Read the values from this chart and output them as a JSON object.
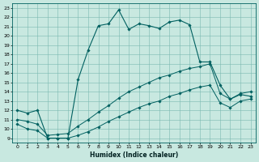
{
  "xlabel": "Humidex (Indice chaleur)",
  "bg_color": "#c8e8e0",
  "grid_color": "#7ab8b0",
  "line_color": "#006060",
  "xlim": [
    -0.5,
    23.5
  ],
  "ylim": [
    8.5,
    23.5
  ],
  "yticks": [
    9,
    10,
    11,
    12,
    13,
    14,
    15,
    16,
    17,
    18,
    19,
    20,
    21,
    22,
    23
  ],
  "xticks": [
    0,
    1,
    2,
    3,
    4,
    5,
    6,
    7,
    8,
    9,
    10,
    11,
    12,
    13,
    14,
    15,
    16,
    17,
    18,
    19,
    20,
    21,
    22,
    23
  ],
  "main_x": [
    0,
    1,
    2,
    3,
    4,
    5,
    6,
    7,
    8,
    9,
    10,
    11,
    12,
    13,
    14,
    15,
    16,
    17,
    18,
    19,
    20,
    21,
    22,
    23
  ],
  "main_y": [
    12.0,
    11.7,
    12.0,
    9.0,
    9.0,
    9.0,
    15.3,
    18.5,
    21.1,
    21.3,
    22.8,
    20.7,
    21.3,
    21.1,
    20.8,
    21.5,
    21.7,
    21.2,
    17.2,
    17.2,
    14.7,
    13.2,
    13.7,
    13.5
  ],
  "mid_x": [
    0,
    1,
    2,
    3,
    4,
    5,
    6,
    7,
    8,
    9,
    10,
    11,
    12,
    13,
    14,
    15,
    16,
    17,
    18,
    19,
    20,
    21,
    22,
    23
  ],
  "mid_y": [
    11.0,
    10.8,
    10.5,
    9.3,
    9.4,
    9.5,
    10.3,
    11.0,
    11.8,
    12.5,
    13.3,
    14.0,
    14.5,
    15.0,
    15.5,
    15.8,
    16.2,
    16.5,
    16.7,
    17.0,
    13.8,
    13.2,
    13.8,
    14.0
  ],
  "low_x": [
    0,
    1,
    2,
    3,
    4,
    5,
    6,
    7,
    8,
    9,
    10,
    11,
    12,
    13,
    14,
    15,
    16,
    17,
    18,
    19,
    20,
    21,
    22,
    23
  ],
  "low_y": [
    10.5,
    10.0,
    9.8,
    9.0,
    9.0,
    9.0,
    9.3,
    9.7,
    10.2,
    10.8,
    11.3,
    11.8,
    12.3,
    12.7,
    13.0,
    13.5,
    13.8,
    14.2,
    14.5,
    14.7,
    12.8,
    12.3,
    13.0,
    13.2
  ]
}
